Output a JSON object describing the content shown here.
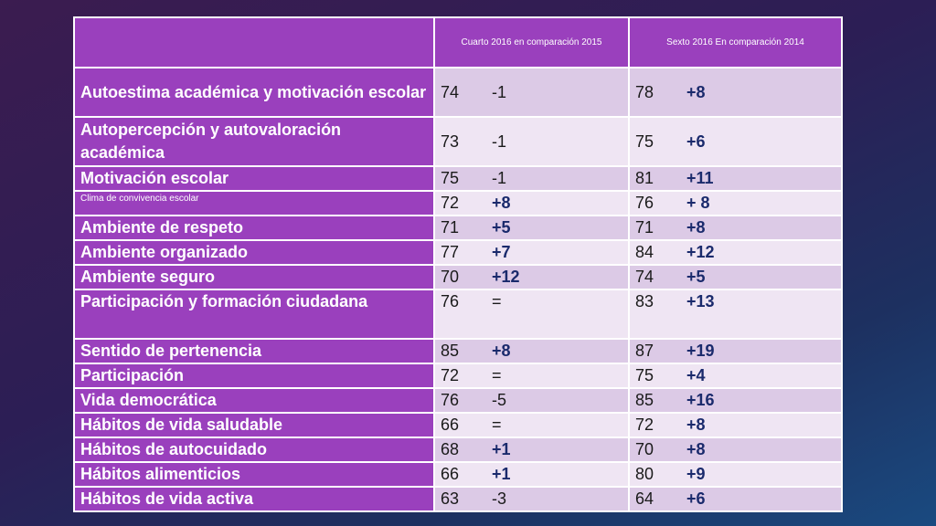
{
  "table": {
    "headers": [
      "",
      "Cuarto  2016 en comparación 2015",
      "Sexto  2016 En comparación 2014"
    ],
    "rows": [
      {
        "label": "Autoestima académica y motivación escolar",
        "c4": "74",
        "d4": "-1",
        "c6": "78",
        "d6": "+8"
      },
      {
        "label": "Autopercepción y autovaloración académica",
        "c4": "73",
        "d4": "-1",
        "c6": "75",
        "d6": "+6"
      },
      {
        "label": "Motivación escolar",
        "c4": "75",
        "d4": "-1",
        "c6": "81",
        "d6": "+11"
      },
      {
        "label": "Clima de convivencia escolar",
        "c4": "72",
        "d4": "+8",
        "c6": "76",
        "d6": "+ 8"
      },
      {
        "label": "Ambiente de respeto",
        "c4": "71",
        "d4": "+5",
        "c6": "71",
        "d6": "+8"
      },
      {
        "label": "Ambiente organizado",
        "c4": "77",
        "d4": "+7",
        "c6": "84",
        "d6": "+12"
      },
      {
        "label": "Ambiente seguro",
        "c4": "70",
        "d4": "+12",
        "c6": "74",
        "d6": "+5"
      },
      {
        "label": "Participación y formación  ciudadana",
        "c4": "76",
        "d4": "=",
        "c6": "83",
        "d6": "+13"
      },
      {
        "label": "Sentido de pertenencia",
        "c4": "85",
        "d4": "+8",
        "c6": "87",
        "d6": "+19"
      },
      {
        "label": "Participación",
        "c4": "72",
        "d4": "=",
        "c6": "75",
        "d6": "+4"
      },
      {
        "label": "Vida democrática",
        "c4": "76",
        "d4": "-5",
        "c6": "85",
        "d6": "+16"
      },
      {
        "label": "Hábitos de vida saludable",
        "c4": "66",
        "d4": "=",
        "c6": "72",
        "d6": "+8"
      },
      {
        "label": "Hábitos de autocuidado",
        "c4": "68",
        "d4": "+1",
        "c6": "70",
        "d6": "+8"
      },
      {
        "label": "Hábitos alimenticios",
        "c4": "66",
        "d4": "+1",
        "c6": "80",
        "d6": "+9"
      },
      {
        "label": "Hábitos de vida activa",
        "c4": "63",
        "d4": "-3",
        "c6": "64",
        "d6": "+6"
      }
    ]
  }
}
